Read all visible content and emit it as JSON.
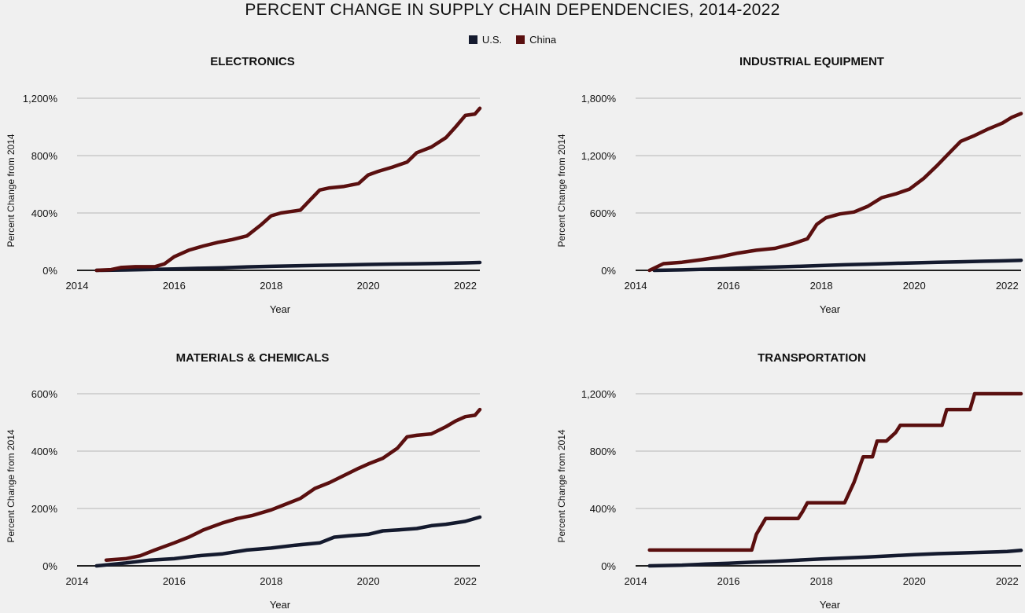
{
  "title": "PERCENT CHANGE IN SUPPLY CHAIN DEPENDENCIES, 2014-2022",
  "legend": [
    {
      "label": "U.S.",
      "color": "#141a2e"
    },
    {
      "label": "China",
      "color": "#5a0f0f"
    }
  ],
  "chart_data": [
    {
      "type": "line",
      "title": "ELECTRONICS",
      "xlabel": "Year",
      "ylabel": "Percent Change from 2014",
      "xlim": [
        2014,
        2022.3
      ],
      "ylim": [
        0,
        1200
      ],
      "x_ticks": [
        2014,
        2016,
        2018,
        2020,
        2022
      ],
      "y_ticks": [
        0,
        400,
        800,
        1200
      ],
      "y_tick_labels": [
        "0%",
        "400%",
        "800%",
        "1,200%"
      ],
      "grid": true,
      "series": [
        {
          "name": "U.S.",
          "color": "#141a2e",
          "x": [
            2014.4,
            2015,
            2015.5,
            2016,
            2016.5,
            2017,
            2017.5,
            2018,
            2018.5,
            2019,
            2019.5,
            2020,
            2020.5,
            2021,
            2021.5,
            2022,
            2022.3
          ],
          "y": [
            0,
            3,
            6,
            10,
            14,
            18,
            24,
            28,
            32,
            35,
            38,
            41,
            44,
            46,
            49,
            52,
            55
          ]
        },
        {
          "name": "China",
          "color": "#5a0f0f",
          "x": [
            2014.4,
            2014.7,
            2014.9,
            2015.2,
            2015.6,
            2015.8,
            2016,
            2016.3,
            2016.6,
            2016.9,
            2017.2,
            2017.5,
            2017.8,
            2018,
            2018.2,
            2018.4,
            2018.6,
            2018.8,
            2019,
            2019.2,
            2019.5,
            2019.8,
            2020,
            2020.2,
            2020.5,
            2020.8,
            2021,
            2021.3,
            2021.6,
            2021.8,
            2022,
            2022.2,
            2022.3
          ],
          "y": [
            0,
            5,
            20,
            25,
            25,
            45,
            95,
            140,
            170,
            195,
            215,
            240,
            320,
            380,
            400,
            410,
            420,
            490,
            560,
            575,
            585,
            605,
            665,
            690,
            720,
            755,
            820,
            860,
            925,
            1000,
            1080,
            1090,
            1130
          ]
        }
      ]
    },
    {
      "type": "line",
      "title": "INDUSTRIAL EQUIPMENT",
      "xlabel": "Year",
      "ylabel": "Percent Change from 2014",
      "xlim": [
        2014,
        2022.3
      ],
      "ylim": [
        0,
        1800
      ],
      "x_ticks": [
        2014,
        2016,
        2018,
        2020,
        2022
      ],
      "y_ticks": [
        0,
        600,
        1200,
        1800
      ],
      "y_tick_labels": [
        "0%",
        "600%",
        "1,200%",
        "1,800%"
      ],
      "grid": true,
      "series": [
        {
          "name": "U.S.",
          "color": "#141a2e",
          "x": [
            2014.4,
            2015,
            2015.5,
            2016,
            2016.5,
            2017,
            2017.5,
            2018,
            2018.5,
            2019,
            2019.5,
            2020,
            2020.5,
            2021,
            2021.5,
            2022,
            2022.3
          ],
          "y": [
            0,
            5,
            12,
            20,
            28,
            35,
            42,
            50,
            58,
            65,
            72,
            78,
            84,
            90,
            95,
            100,
            105
          ]
        },
        {
          "name": "China",
          "color": "#5a0f0f",
          "x": [
            2014.3,
            2014.6,
            2015,
            2015.4,
            2015.8,
            2016.2,
            2016.6,
            2017,
            2017.4,
            2017.7,
            2017.9,
            2018.1,
            2018.4,
            2018.7,
            2019,
            2019.3,
            2019.6,
            2019.9,
            2020.2,
            2020.5,
            2020.8,
            2021,
            2021.3,
            2021.6,
            2021.9,
            2022.1,
            2022.3
          ],
          "y": [
            0,
            70,
            85,
            110,
            140,
            180,
            210,
            230,
            280,
            330,
            480,
            550,
            590,
            610,
            670,
            760,
            800,
            850,
            960,
            1100,
            1250,
            1350,
            1410,
            1480,
            1540,
            1600,
            1640
          ]
        }
      ]
    },
    {
      "type": "line",
      "title": "MATERIALS & CHEMICALS",
      "xlabel": "Year",
      "ylabel": "Percent Change from 2014",
      "xlim": [
        2014,
        2022.3
      ],
      "ylim": [
        0,
        600
      ],
      "x_ticks": [
        2014,
        2016,
        2018,
        2020,
        2022
      ],
      "y_ticks": [
        0,
        200,
        400,
        600
      ],
      "y_tick_labels": [
        "0%",
        "200%",
        "400%",
        "600%"
      ],
      "grid": true,
      "series": [
        {
          "name": "U.S.",
          "color": "#141a2e",
          "x": [
            2014.4,
            2015,
            2015.5,
            2016,
            2016.5,
            2017,
            2017.5,
            2018,
            2018.5,
            2019,
            2019.3,
            2019.6,
            2020,
            2020.3,
            2020.6,
            2021,
            2021.3,
            2021.6,
            2022,
            2022.3
          ],
          "y": [
            0,
            10,
            20,
            25,
            35,
            42,
            55,
            62,
            72,
            80,
            100,
            105,
            110,
            122,
            125,
            130,
            140,
            145,
            155,
            170
          ]
        },
        {
          "name": "China",
          "color": "#5a0f0f",
          "x": [
            2014.6,
            2015,
            2015.3,
            2015.6,
            2016,
            2016.3,
            2016.6,
            2017,
            2017.3,
            2017.6,
            2018,
            2018.3,
            2018.6,
            2018.9,
            2019.2,
            2019.5,
            2019.8,
            2020,
            2020.3,
            2020.6,
            2020.8,
            2021,
            2021.3,
            2021.6,
            2021.8,
            2022,
            2022.2,
            2022.3
          ],
          "y": [
            20,
            25,
            35,
            55,
            80,
            100,
            125,
            150,
            165,
            175,
            195,
            215,
            235,
            270,
            290,
            315,
            340,
            355,
            375,
            410,
            450,
            455,
            460,
            485,
            505,
            520,
            525,
            545
          ]
        }
      ]
    },
    {
      "type": "line",
      "title": "TRANSPORTATION",
      "xlabel": "Year",
      "ylabel": "Percent Change from 2014",
      "xlim": [
        2014,
        2022.3
      ],
      "ylim": [
        0,
        1200
      ],
      "x_ticks": [
        2014,
        2016,
        2018,
        2020,
        2022
      ],
      "y_ticks": [
        0,
        400,
        800,
        1200
      ],
      "y_tick_labels": [
        "0%",
        "400%",
        "800%",
        "1,200%"
      ],
      "grid": true,
      "series": [
        {
          "name": "U.S.",
          "color": "#141a2e",
          "x": [
            2014.3,
            2015,
            2015.5,
            2016,
            2016.5,
            2017,
            2017.5,
            2018,
            2018.5,
            2019,
            2019.5,
            2020,
            2020.5,
            2021,
            2021.5,
            2022,
            2022.3
          ],
          "y": [
            0,
            5,
            12,
            18,
            25,
            32,
            40,
            48,
            55,
            62,
            70,
            78,
            85,
            90,
            95,
            100,
            108
          ]
        },
        {
          "name": "China",
          "color": "#5a0f0f",
          "x": [
            2014.3,
            2016.5,
            2016.6,
            2016.8,
            2017.5,
            2017.6,
            2017.7,
            2018.5,
            2018.7,
            2018.9,
            2019.1,
            2019.2,
            2019.4,
            2019.6,
            2019.7,
            2020.6,
            2020.7,
            2021.2,
            2021.3,
            2022.3
          ],
          "y": [
            110,
            110,
            220,
            330,
            330,
            380,
            440,
            440,
            580,
            760,
            760,
            870,
            870,
            930,
            980,
            980,
            1090,
            1090,
            1200,
            1200
          ]
        }
      ]
    }
  ]
}
